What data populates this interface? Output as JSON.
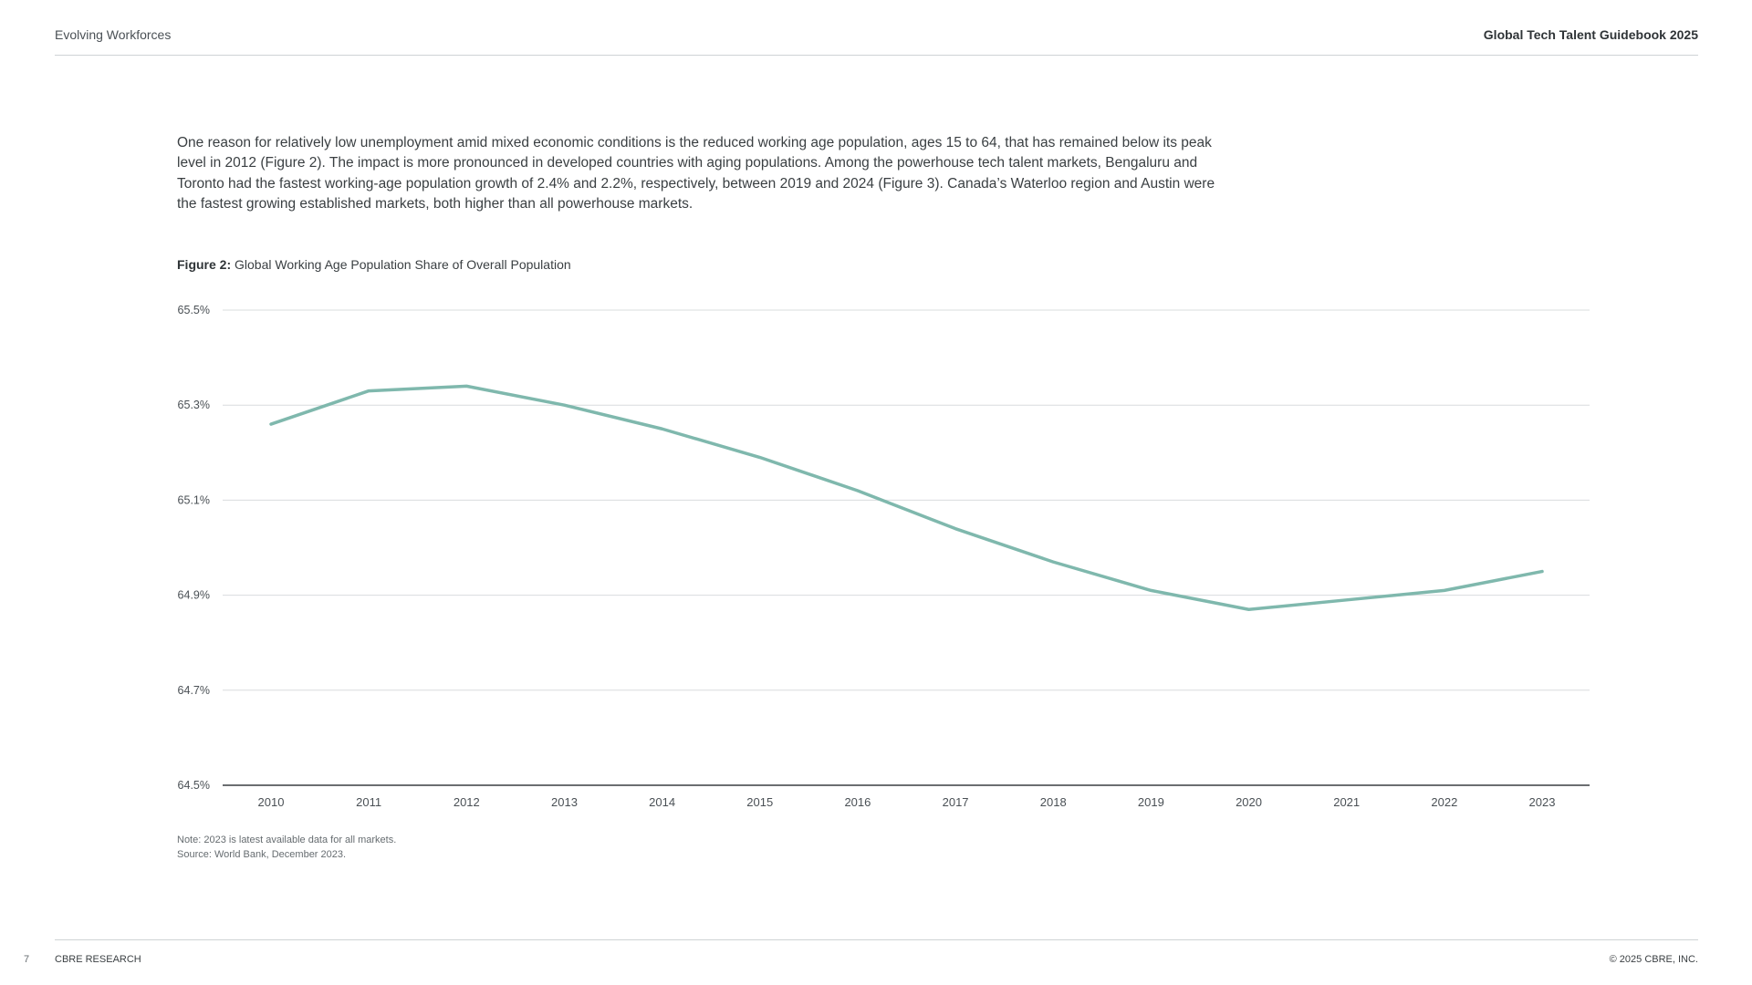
{
  "header": {
    "section": "Evolving Workforces",
    "publication": "Global Tech Talent Guidebook 2025"
  },
  "body_text": "One reason for relatively low unemployment amid mixed economic conditions is the reduced working age population, ages 15 to 64, that has remained below its peak level in 2012 (Figure 2). The impact is more pronounced in developed countries with aging populations. Among the powerhouse tech talent markets, Bengaluru and Toronto had the fastest working-age population growth of 2.4% and 2.2%, respectively, between 2019 and 2024 (Figure 3). Canada’s Waterloo region and Austin were the fastest growing established markets, both higher than all powerhouse markets.",
  "figure": {
    "label": "Figure 2:",
    "title": "Global Working Age Population Share of Overall Population"
  },
  "chart_data": {
    "type": "line",
    "title": "Global Working Age Population Share of Overall Population",
    "xlabel": "",
    "ylabel": "",
    "categories": [
      "2010",
      "2011",
      "2012",
      "2013",
      "2014",
      "2015",
      "2016",
      "2017",
      "2018",
      "2019",
      "2020",
      "2021",
      "2022",
      "2023"
    ],
    "series": [
      {
        "values": [
          65.26,
          65.33,
          65.34,
          65.3,
          65.25,
          65.19,
          65.12,
          65.04,
          64.97,
          64.91,
          64.87,
          64.89,
          64.91,
          64.95
        ],
        "color": "#7fb8ad"
      }
    ],
    "ylim": [
      64.5,
      65.5
    ],
    "yticks": [
      "65.5%",
      "65.3%",
      "65.1%",
      "64.9%",
      "64.7%",
      "64.5%"
    ],
    "ytick_values": [
      65.5,
      65.3,
      65.1,
      64.9,
      64.7,
      64.5
    ],
    "grid": true,
    "legend": "none"
  },
  "notes": {
    "note": "Note: 2023 is latest available data for all markets.",
    "source": "Source: World Bank, December 2023."
  },
  "footer": {
    "page_number": "7",
    "left": "CBRE RESEARCH",
    "right": "© 2025 CBRE, INC."
  }
}
